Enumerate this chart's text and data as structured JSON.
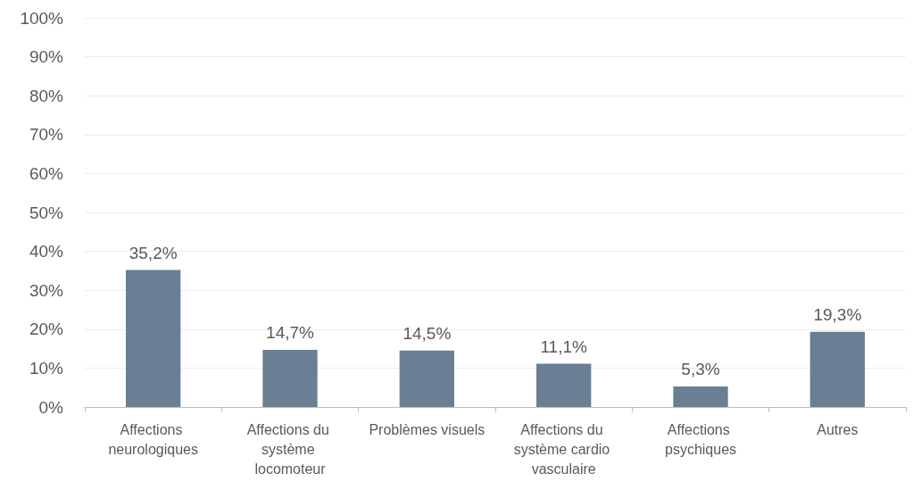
{
  "chart_data": {
    "type": "bar",
    "categories": [
      "Affections neurologiques",
      "Affections du système locomoteur",
      "Problèmes visuels",
      "Affections du système cardio vasculaire",
      "Affections psychiques",
      "Autres"
    ],
    "values": [
      35.2,
      14.7,
      14.5,
      11.1,
      5.3,
      19.3
    ],
    "value_labels": [
      "35,2%",
      "14,7%",
      "14,5%",
      "11,1%",
      "5,3%",
      "19,3%"
    ],
    "color": "#6a7f93",
    "ylim": [
      0,
      100
    ],
    "yticks": [
      {
        "value": 0,
        "label": "0%"
      },
      {
        "value": 10,
        "label": "10%"
      },
      {
        "value": 20,
        "label": "20%"
      },
      {
        "value": 30,
        "label": "30%"
      },
      {
        "value": 40,
        "label": "40%"
      },
      {
        "value": 50,
        "label": "50%"
      },
      {
        "value": 60,
        "label": "60%"
      },
      {
        "value": 70,
        "label": "70%"
      },
      {
        "value": 80,
        "label": "80%"
      },
      {
        "value": 90,
        "label": "90%"
      },
      {
        "value": 100,
        "label": "100%"
      }
    ],
    "grid": "y"
  }
}
